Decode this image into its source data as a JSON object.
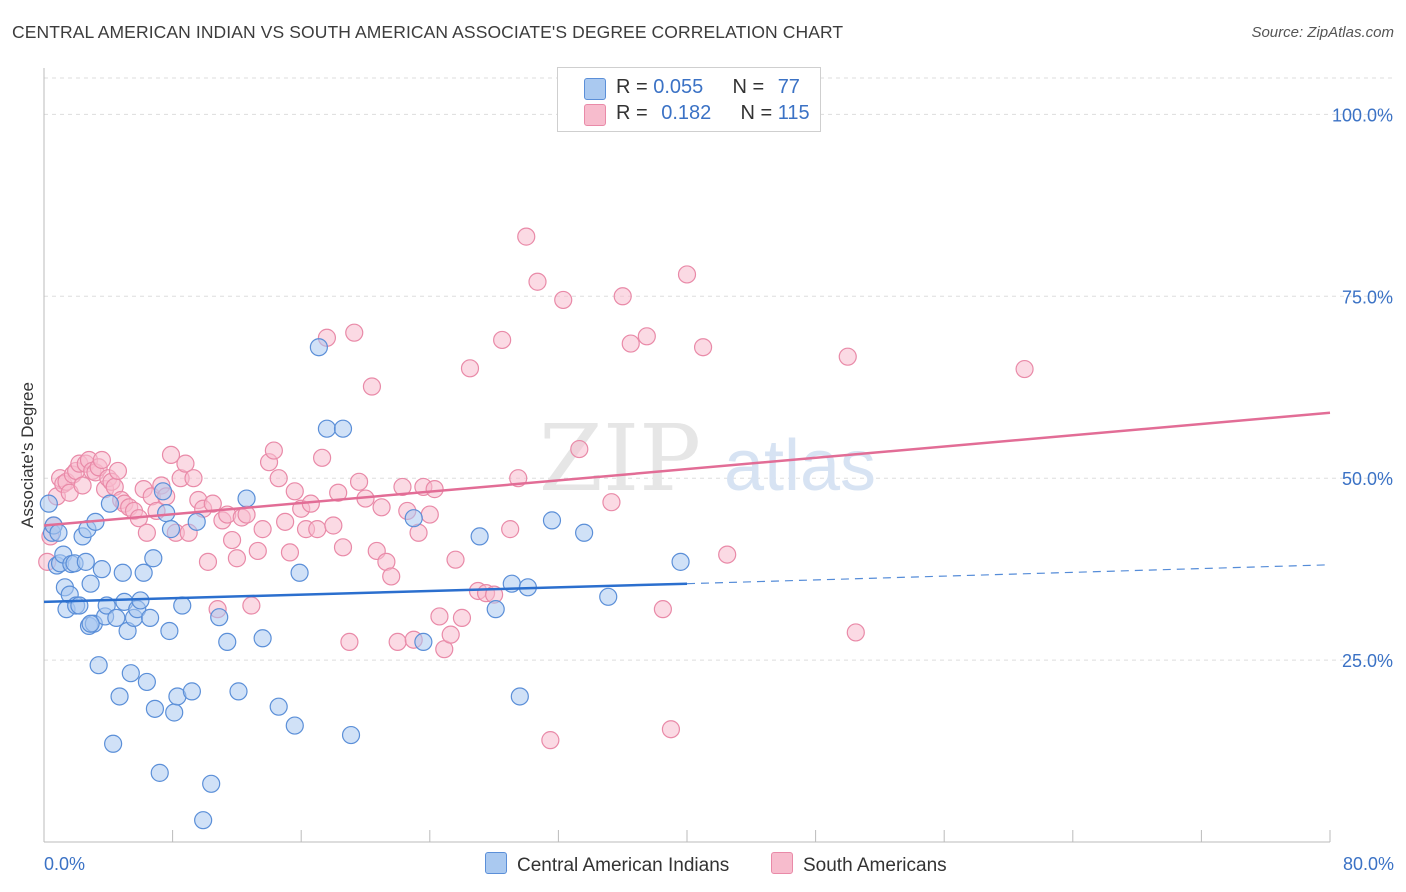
{
  "title": "CENTRAL AMERICAN INDIAN VS SOUTH AMERICAN ASSOCIATE'S DEGREE CORRELATION CHART",
  "source": "Source: ZipAtlas.com",
  "watermark": {
    "zip": "ZIP",
    "atlas": "atlas"
  },
  "legend": {
    "blue": {
      "r_label": "R = ",
      "r_value": "0.055",
      "n_label": "N = ",
      "n_value": "77"
    },
    "pink": {
      "r_label": "R = ",
      "r_value": "0.182",
      "n_label": "N = ",
      "n_value": "115"
    }
  },
  "colors": {
    "blue_fill": "#aac9f0",
    "blue_stroke": "#5b8fd8",
    "blue_line": "#2b6fce",
    "pink_fill": "#f7bccd",
    "pink_stroke": "#e98aa8",
    "pink_line": "#e26d96",
    "tick_label": "#3b72c5",
    "grid": "#dddddd"
  },
  "chart_data": {
    "type": "scatter",
    "title": "CENTRAL AMERICAN INDIAN VS SOUTH AMERICAN ASSOCIATE'S DEGREE CORRELATION CHART",
    "xlabel": "",
    "ylabel": "Associate's Degree",
    "xlim": [
      0,
      80
    ],
    "ylim": [
      0,
      105
    ],
    "x_tick_labels": [
      {
        "value": 0,
        "label": "0.0%"
      },
      {
        "value": 80,
        "label": "80.0%"
      }
    ],
    "y_tick_labels": [
      {
        "value": 25,
        "label": "25.0%"
      },
      {
        "value": 50,
        "label": "50.0%"
      },
      {
        "value": 75,
        "label": "75.0%"
      },
      {
        "value": 100,
        "label": "100.0%"
      }
    ],
    "grid": true,
    "legend_position": "top-center",
    "series": [
      {
        "name": "Central American Indians",
        "color": "#5b8fd8",
        "r": 0.055,
        "n": 77,
        "trend": {
          "x0": 0,
          "y0": 33.0,
          "x1": 40,
          "y1": 35.5,
          "dashed_to_x": 80,
          "dashed_to_y": 38.1
        },
        "points": [
          [
            0.3,
            46.5
          ],
          [
            0.5,
            42.5
          ],
          [
            0.6,
            43.5
          ],
          [
            0.8,
            38
          ],
          [
            1.0,
            38.3
          ],
          [
            1.2,
            39.5
          ],
          [
            1.3,
            35
          ],
          [
            1.4,
            32
          ],
          [
            1.6,
            34
          ],
          [
            1.7,
            38.2
          ],
          [
            1.9,
            38.3
          ],
          [
            2.0,
            32.5
          ],
          [
            2.2,
            32.5
          ],
          [
            2.4,
            42
          ],
          [
            2.6,
            38.5
          ],
          [
            2.7,
            43
          ],
          [
            2.8,
            29.7
          ],
          [
            2.9,
            35.5
          ],
          [
            3.1,
            30
          ],
          [
            3.2,
            44
          ],
          [
            3.4,
            24.3
          ],
          [
            3.6,
            37.5
          ],
          [
            3.8,
            31
          ],
          [
            3.9,
            32.5
          ],
          [
            4.1,
            46.5
          ],
          [
            4.3,
            13.5
          ],
          [
            4.5,
            30.8
          ],
          [
            4.7,
            20
          ],
          [
            4.9,
            37
          ],
          [
            5.0,
            33
          ],
          [
            5.2,
            29
          ],
          [
            5.4,
            23.2
          ],
          [
            5.6,
            30.8
          ],
          [
            5.8,
            32
          ],
          [
            6.0,
            33.2
          ],
          [
            6.2,
            37
          ],
          [
            6.4,
            22
          ],
          [
            6.6,
            30.8
          ],
          [
            6.8,
            39
          ],
          [
            6.9,
            18.3
          ],
          [
            7.2,
            9.5
          ],
          [
            7.4,
            48.2
          ],
          [
            7.6,
            45.2
          ],
          [
            7.8,
            29
          ],
          [
            7.9,
            43
          ],
          [
            8.1,
            17.8
          ],
          [
            8.3,
            20
          ],
          [
            8.6,
            32.5
          ],
          [
            9.2,
            20.7
          ],
          [
            9.5,
            44
          ],
          [
            9.9,
            3
          ],
          [
            10.4,
            8
          ],
          [
            10.9,
            30.9
          ],
          [
            11.4,
            27.5
          ],
          [
            12.1,
            20.7
          ],
          [
            12.6,
            47.2
          ],
          [
            13.6,
            28
          ],
          [
            14.6,
            18.6
          ],
          [
            15.6,
            16
          ],
          [
            15.9,
            37
          ],
          [
            17.1,
            68
          ],
          [
            17.6,
            56.8
          ],
          [
            18.6,
            56.8
          ],
          [
            19.1,
            14.7
          ],
          [
            23.0,
            44.5
          ],
          [
            23.6,
            27.5
          ],
          [
            27.1,
            42
          ],
          [
            28.1,
            32
          ],
          [
            29.1,
            35.5
          ],
          [
            29.6,
            20
          ],
          [
            30.1,
            35
          ],
          [
            31.6,
            44.2
          ],
          [
            33.6,
            42.5
          ],
          [
            35.1,
            33.7
          ],
          [
            39.6,
            38.5
          ],
          [
            0.9,
            42.5
          ],
          [
            2.9,
            30
          ]
        ]
      },
      {
        "name": "South Americans",
        "color": "#e98aa8",
        "r": 0.182,
        "n": 115,
        "trend": {
          "x0": 0,
          "y0": 43.5,
          "x1": 80,
          "y1": 59.0
        },
        "points": [
          [
            0.2,
            38.5
          ],
          [
            0.4,
            42
          ],
          [
            0.6,
            43.5
          ],
          [
            0.8,
            47.5
          ],
          [
            1.0,
            50
          ],
          [
            1.2,
            49.2
          ],
          [
            1.4,
            49.5
          ],
          [
            1.6,
            48
          ],
          [
            1.8,
            50.5
          ],
          [
            2.0,
            51
          ],
          [
            2.2,
            52
          ],
          [
            2.4,
            49
          ],
          [
            2.6,
            52
          ],
          [
            2.8,
            52.5
          ],
          [
            3.0,
            51
          ],
          [
            3.2,
            50.8
          ],
          [
            3.4,
            51.5
          ],
          [
            3.6,
            52.5
          ],
          [
            3.8,
            48.5
          ],
          [
            4.0,
            50
          ],
          [
            4.2,
            49.5
          ],
          [
            4.4,
            48.8
          ],
          [
            4.6,
            51
          ],
          [
            4.8,
            47
          ],
          [
            5.0,
            46.5
          ],
          [
            5.3,
            46
          ],
          [
            5.6,
            45.5
          ],
          [
            5.9,
            44.5
          ],
          [
            6.2,
            48.5
          ],
          [
            6.4,
            42.5
          ],
          [
            6.7,
            47.5
          ],
          [
            7.0,
            45.5
          ],
          [
            7.3,
            49
          ],
          [
            7.6,
            47.5
          ],
          [
            7.9,
            53.2
          ],
          [
            8.2,
            42.5
          ],
          [
            8.5,
            50
          ],
          [
            8.8,
            52
          ],
          [
            9.0,
            42.5
          ],
          [
            9.3,
            50
          ],
          [
            9.6,
            47
          ],
          [
            9.9,
            45.8
          ],
          [
            10.2,
            38.5
          ],
          [
            10.5,
            46.5
          ],
          [
            10.8,
            32
          ],
          [
            11.1,
            44.2
          ],
          [
            11.4,
            45
          ],
          [
            11.7,
            41.5
          ],
          [
            12.0,
            39
          ],
          [
            12.3,
            44.6
          ],
          [
            12.6,
            45
          ],
          [
            12.9,
            32.5
          ],
          [
            13.3,
            40
          ],
          [
            13.6,
            43
          ],
          [
            14.0,
            52.2
          ],
          [
            14.3,
            53.8
          ],
          [
            14.6,
            50
          ],
          [
            15.0,
            44
          ],
          [
            15.3,
            39.8
          ],
          [
            15.6,
            48.2
          ],
          [
            16.0,
            45.8
          ],
          [
            16.3,
            43
          ],
          [
            16.6,
            46.5
          ],
          [
            17.0,
            43
          ],
          [
            17.3,
            52.8
          ],
          [
            17.6,
            69.3
          ],
          [
            18.0,
            43.5
          ],
          [
            18.3,
            48
          ],
          [
            18.6,
            40.5
          ],
          [
            19.0,
            27.5
          ],
          [
            19.3,
            70
          ],
          [
            19.6,
            49.5
          ],
          [
            20.0,
            47.2
          ],
          [
            20.4,
            62.6
          ],
          [
            20.7,
            40
          ],
          [
            21.0,
            46
          ],
          [
            21.3,
            38.5
          ],
          [
            21.6,
            36.5
          ],
          [
            22.0,
            27.5
          ],
          [
            22.3,
            48.8
          ],
          [
            22.6,
            45.5
          ],
          [
            23.0,
            27.8
          ],
          [
            23.3,
            42.5
          ],
          [
            23.6,
            48.8
          ],
          [
            24.0,
            45
          ],
          [
            24.3,
            48.5
          ],
          [
            24.6,
            31
          ],
          [
            24.9,
            26.5
          ],
          [
            25.3,
            28.5
          ],
          [
            25.6,
            38.8
          ],
          [
            26.0,
            30.8
          ],
          [
            26.5,
            65.1
          ],
          [
            27.0,
            34.5
          ],
          [
            27.5,
            34.2
          ],
          [
            28.0,
            34
          ],
          [
            28.5,
            69
          ],
          [
            29.0,
            43
          ],
          [
            29.5,
            50
          ],
          [
            30.0,
            83.2
          ],
          [
            30.7,
            77
          ],
          [
            31.5,
            14
          ],
          [
            32.3,
            74.5
          ],
          [
            33.3,
            54
          ],
          [
            35.3,
            46.7
          ],
          [
            36.0,
            75
          ],
          [
            36.5,
            68.5
          ],
          [
            37.5,
            69.5
          ],
          [
            38.5,
            32
          ],
          [
            39.0,
            15.5
          ],
          [
            40.0,
            78
          ],
          [
            41.0,
            68
          ],
          [
            42.5,
            39.5
          ],
          [
            50.0,
            66.7
          ],
          [
            50.5,
            28.8
          ],
          [
            61.0,
            65
          ]
        ]
      }
    ]
  }
}
